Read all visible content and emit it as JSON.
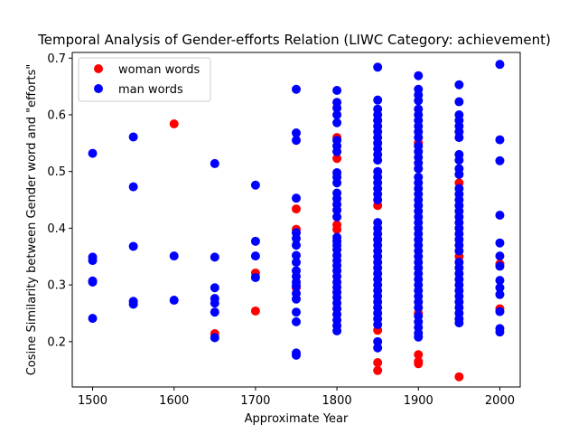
{
  "chart_data": {
    "type": "scatter",
    "title": "Temporal Analysis of Gender-efforts Relation (LIWC Category: achievement)",
    "xlabel": "Approximate Year",
    "ylabel": "Cosine Similarity between Gender word and \"efforts\"",
    "xlim": [
      1475,
      2025
    ],
    "ylim": [
      0.12,
      0.71
    ],
    "xticks": [
      1500,
      1600,
      1700,
      1800,
      1900,
      2000
    ],
    "yticks": [
      0.2,
      0.3,
      0.4,
      0.5,
      0.6,
      0.7
    ],
    "grid": false,
    "legend_position": "upper-left",
    "series": [
      {
        "name": "woman words",
        "color": "#ff0000",
        "points": [
          [
            1600,
            0.584
          ],
          [
            1650,
            0.214
          ],
          [
            1700,
            0.321
          ],
          [
            1700,
            0.254
          ],
          [
            1750,
            0.434
          ],
          [
            1750,
            0.398
          ],
          [
            1750,
            0.295
          ],
          [
            1800,
            0.56
          ],
          [
            1800,
            0.523
          ],
          [
            1800,
            0.406
          ],
          [
            1800,
            0.398
          ],
          [
            1850,
            0.59
          ],
          [
            1850,
            0.44
          ],
          [
            1850,
            0.38
          ],
          [
            1850,
            0.22
          ],
          [
            1850,
            0.163
          ],
          [
            1850,
            0.149
          ],
          [
            1900,
            0.55
          ],
          [
            1900,
            0.505
          ],
          [
            1900,
            0.25
          ],
          [
            1900,
            0.177
          ],
          [
            1900,
            0.165
          ],
          [
            1900,
            0.161
          ],
          [
            1950,
            0.48
          ],
          [
            1950,
            0.35
          ],
          [
            1950,
            0.138
          ],
          [
            2000,
            0.337
          ],
          [
            2000,
            0.258
          ]
        ]
      },
      {
        "name": "man words",
        "color": "#0000ff",
        "points": [
          [
            1500,
            0.532
          ],
          [
            1500,
            0.349
          ],
          [
            1500,
            0.343
          ],
          [
            1500,
            0.307
          ],
          [
            1500,
            0.305
          ],
          [
            1500,
            0.241
          ],
          [
            1550,
            0.561
          ],
          [
            1550,
            0.473
          ],
          [
            1550,
            0.368
          ],
          [
            1550,
            0.271
          ],
          [
            1550,
            0.266
          ],
          [
            1600,
            0.351
          ],
          [
            1600,
            0.273
          ],
          [
            1650,
            0.514
          ],
          [
            1650,
            0.349
          ],
          [
            1650,
            0.295
          ],
          [
            1650,
            0.276
          ],
          [
            1650,
            0.268
          ],
          [
            1650,
            0.252
          ],
          [
            1650,
            0.207
          ],
          [
            1700,
            0.476
          ],
          [
            1700,
            0.377
          ],
          [
            1700,
            0.351
          ],
          [
            1700,
            0.313
          ],
          [
            1750,
            0.645
          ],
          [
            1750,
            0.568
          ],
          [
            1750,
            0.555
          ],
          [
            1750,
            0.453
          ],
          [
            1750,
            0.392
          ],
          [
            1750,
            0.382
          ],
          [
            1750,
            0.37
          ],
          [
            1750,
            0.352
          ],
          [
            1750,
            0.34
          ],
          [
            1750,
            0.325
          ],
          [
            1750,
            0.315
          ],
          [
            1750,
            0.305
          ],
          [
            1750,
            0.298
          ],
          [
            1750,
            0.285
          ],
          [
            1750,
            0.275
          ],
          [
            1750,
            0.252
          ],
          [
            1750,
            0.235
          ],
          [
            1750,
            0.18
          ],
          [
            1750,
            0.176
          ],
          [
            1800,
            0.643
          ],
          [
            1800,
            0.622
          ],
          [
            1800,
            0.612
          ],
          [
            1800,
            0.6
          ],
          [
            1800,
            0.586
          ],
          [
            1800,
            0.555
          ],
          [
            1800,
            0.545
          ],
          [
            1800,
            0.535
          ],
          [
            1800,
            0.498
          ],
          [
            1800,
            0.49
          ],
          [
            1800,
            0.48
          ],
          [
            1800,
            0.462
          ],
          [
            1800,
            0.452
          ],
          [
            1800,
            0.442
          ],
          [
            1800,
            0.432
          ],
          [
            1800,
            0.42
          ],
          [
            1800,
            0.384
          ],
          [
            1800,
            0.377
          ],
          [
            1800,
            0.37
          ],
          [
            1800,
            0.362
          ],
          [
            1800,
            0.352
          ],
          [
            1800,
            0.343
          ],
          [
            1800,
            0.334
          ],
          [
            1800,
            0.325
          ],
          [
            1800,
            0.315
          ],
          [
            1800,
            0.305
          ],
          [
            1800,
            0.296
          ],
          [
            1800,
            0.287
          ],
          [
            1800,
            0.278
          ],
          [
            1800,
            0.268
          ],
          [
            1800,
            0.258
          ],
          [
            1800,
            0.248
          ],
          [
            1800,
            0.238
          ],
          [
            1800,
            0.228
          ],
          [
            1800,
            0.219
          ],
          [
            1850,
            0.684
          ],
          [
            1850,
            0.626
          ],
          [
            1850,
            0.61
          ],
          [
            1850,
            0.6
          ],
          [
            1850,
            0.59
          ],
          [
            1850,
            0.58
          ],
          [
            1850,
            0.57
          ],
          [
            1850,
            0.56
          ],
          [
            1850,
            0.55
          ],
          [
            1850,
            0.54
          ],
          [
            1850,
            0.53
          ],
          [
            1850,
            0.52
          ],
          [
            1850,
            0.5
          ],
          [
            1850,
            0.49
          ],
          [
            1850,
            0.48
          ],
          [
            1850,
            0.47
          ],
          [
            1850,
            0.46
          ],
          [
            1850,
            0.45
          ],
          [
            1850,
            0.41
          ],
          [
            1850,
            0.4
          ],
          [
            1850,
            0.39
          ],
          [
            1850,
            0.38
          ],
          [
            1850,
            0.37
          ],
          [
            1850,
            0.36
          ],
          [
            1850,
            0.35
          ],
          [
            1850,
            0.34
          ],
          [
            1850,
            0.33
          ],
          [
            1850,
            0.32
          ],
          [
            1850,
            0.31
          ],
          [
            1850,
            0.3
          ],
          [
            1850,
            0.29
          ],
          [
            1850,
            0.28
          ],
          [
            1850,
            0.27
          ],
          [
            1850,
            0.26
          ],
          [
            1850,
            0.25
          ],
          [
            1850,
            0.24
          ],
          [
            1850,
            0.23
          ],
          [
            1850,
            0.2
          ],
          [
            1850,
            0.189
          ],
          [
            1900,
            0.669
          ],
          [
            1900,
            0.645
          ],
          [
            1900,
            0.635
          ],
          [
            1900,
            0.625
          ],
          [
            1900,
            0.61
          ],
          [
            1900,
            0.6
          ],
          [
            1900,
            0.59
          ],
          [
            1900,
            0.58
          ],
          [
            1900,
            0.57
          ],
          [
            1900,
            0.56
          ],
          [
            1900,
            0.545
          ],
          [
            1900,
            0.535
          ],
          [
            1900,
            0.525
          ],
          [
            1900,
            0.515
          ],
          [
            1900,
            0.505
          ],
          [
            1900,
            0.49
          ],
          [
            1900,
            0.48
          ],
          [
            1900,
            0.47
          ],
          [
            1900,
            0.46
          ],
          [
            1900,
            0.45
          ],
          [
            1900,
            0.44
          ],
          [
            1900,
            0.43
          ],
          [
            1900,
            0.42
          ],
          [
            1900,
            0.41
          ],
          [
            1900,
            0.4
          ],
          [
            1900,
            0.39
          ],
          [
            1900,
            0.38
          ],
          [
            1900,
            0.37
          ],
          [
            1900,
            0.36
          ],
          [
            1900,
            0.35
          ],
          [
            1900,
            0.34
          ],
          [
            1900,
            0.33
          ],
          [
            1900,
            0.32
          ],
          [
            1900,
            0.31
          ],
          [
            1900,
            0.3
          ],
          [
            1900,
            0.29
          ],
          [
            1900,
            0.28
          ],
          [
            1900,
            0.27
          ],
          [
            1900,
            0.26
          ],
          [
            1900,
            0.245
          ],
          [
            1900,
            0.235
          ],
          [
            1900,
            0.225
          ],
          [
            1900,
            0.215
          ],
          [
            1900,
            0.208
          ],
          [
            1950,
            0.653
          ],
          [
            1950,
            0.623
          ],
          [
            1950,
            0.6
          ],
          [
            1950,
            0.59
          ],
          [
            1950,
            0.58
          ],
          [
            1950,
            0.57
          ],
          [
            1950,
            0.56
          ],
          [
            1950,
            0.53
          ],
          [
            1950,
            0.52
          ],
          [
            1950,
            0.505
          ],
          [
            1950,
            0.495
          ],
          [
            1950,
            0.47
          ],
          [
            1950,
            0.46
          ],
          [
            1950,
            0.45
          ],
          [
            1950,
            0.44
          ],
          [
            1950,
            0.43
          ],
          [
            1950,
            0.42
          ],
          [
            1950,
            0.41
          ],
          [
            1950,
            0.4
          ],
          [
            1950,
            0.39
          ],
          [
            1950,
            0.38
          ],
          [
            1950,
            0.37
          ],
          [
            1950,
            0.36
          ],
          [
            1950,
            0.34
          ],
          [
            1950,
            0.33
          ],
          [
            1950,
            0.32
          ],
          [
            1950,
            0.31
          ],
          [
            1950,
            0.3
          ],
          [
            1950,
            0.29
          ],
          [
            1950,
            0.28
          ],
          [
            1950,
            0.27
          ],
          [
            1950,
            0.26
          ],
          [
            1950,
            0.25
          ],
          [
            1950,
            0.24
          ],
          [
            1950,
            0.233
          ],
          [
            2000,
            0.689
          ],
          [
            2000,
            0.556
          ],
          [
            2000,
            0.519
          ],
          [
            2000,
            0.423
          ],
          [
            2000,
            0.374
          ],
          [
            2000,
            0.351
          ],
          [
            2000,
            0.333
          ],
          [
            2000,
            0.308
          ],
          [
            2000,
            0.295
          ],
          [
            2000,
            0.283
          ],
          [
            2000,
            0.253
          ],
          [
            2000,
            0.223
          ],
          [
            2000,
            0.217
          ]
        ]
      }
    ]
  }
}
